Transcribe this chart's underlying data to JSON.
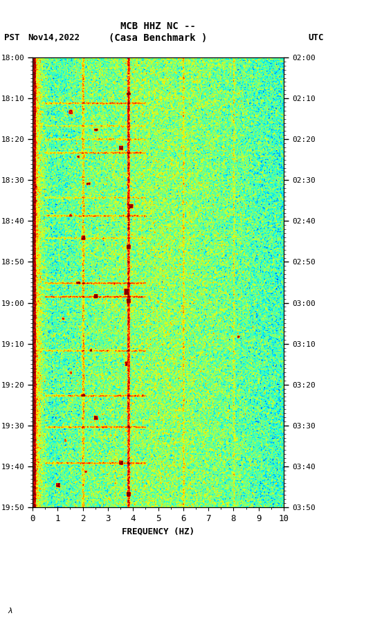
{
  "title_line1": "MCB HHZ NC --",
  "title_line2": "(Casa Benchmark )",
  "left_label_tz": "PST",
  "left_label_date": "Nov14,2022",
  "right_label": "UTC",
  "freq_label": "FREQUENCY (HZ)",
  "freq_min": 0,
  "freq_max": 10,
  "ytick_pst": [
    "18:00",
    "18:10",
    "18:20",
    "18:30",
    "18:40",
    "18:50",
    "19:00",
    "19:10",
    "19:20",
    "19:30",
    "19:40",
    "19:50"
  ],
  "ytick_utc": [
    "02:00",
    "02:10",
    "02:20",
    "02:30",
    "02:40",
    "02:50",
    "03:00",
    "03:10",
    "03:20",
    "03:30",
    "03:40",
    "03:50"
  ],
  "colormap": "jet",
  "bg_color": "#ffffff",
  "black_panel_color": "#000000",
  "seed": 42,
  "n_freq_bins": 300,
  "n_time_bins": 500,
  "vmin": -170,
  "vmax": -90
}
